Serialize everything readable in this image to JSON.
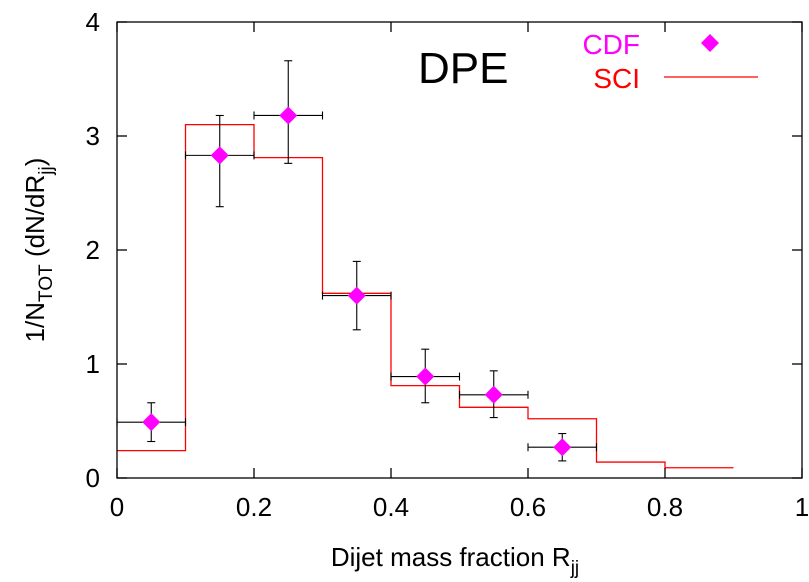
{
  "chart_data": {
    "type": "scatter",
    "xlabel": {
      "main": "Dijet mass fraction R",
      "sub": "jj"
    },
    "ylabel": {
      "prefix": "1/N",
      "sub1": "TOT",
      "mid": " (dN/dR",
      "sub2": "jj",
      "suffix": ")"
    },
    "xlim": [
      0,
      1
    ],
    "ylim": [
      0,
      4
    ],
    "xticks": [
      0,
      0.2,
      0.4,
      0.6,
      0.8,
      1
    ],
    "xtick_labels": [
      "0",
      "0.2",
      "0.4",
      "0.6",
      "0.8",
      "1"
    ],
    "yticks": [
      0,
      1,
      2,
      3,
      4
    ],
    "ytick_labels": [
      "0",
      "1",
      "2",
      "3",
      "4"
    ],
    "grid": false,
    "legend_position": "top-right",
    "annotation": "DPE",
    "series": [
      {
        "name": "CDF",
        "kind": "points-with-errors",
        "color": "#ff00ff",
        "marker": "diamond",
        "points": [
          {
            "x": 0.05,
            "y": 0.49,
            "xerr": 0.05,
            "ylo": 0.32,
            "yhi": 0.66
          },
          {
            "x": 0.15,
            "y": 2.83,
            "xerr": 0.05,
            "ylo": 2.38,
            "yhi": 3.18
          },
          {
            "x": 0.25,
            "y": 3.18,
            "xerr": 0.05,
            "ylo": 2.76,
            "yhi": 3.66
          },
          {
            "x": 0.35,
            "y": 1.6,
            "xerr": 0.05,
            "ylo": 1.3,
            "yhi": 1.9
          },
          {
            "x": 0.45,
            "y": 0.89,
            "xerr": 0.05,
            "ylo": 0.66,
            "yhi": 1.13
          },
          {
            "x": 0.55,
            "y": 0.73,
            "xerr": 0.05,
            "ylo": 0.53,
            "yhi": 0.94
          },
          {
            "x": 0.65,
            "y": 0.27,
            "xerr": 0.05,
            "ylo": 0.15,
            "yhi": 0.39
          }
        ]
      },
      {
        "name": "SCI",
        "kind": "histogram-step",
        "color": "#ff0000",
        "bin_edges": [
          0,
          0.1,
          0.2,
          0.3,
          0.4,
          0.5,
          0.6,
          0.7,
          0.8,
          0.9
        ],
        "values": [
          0.24,
          3.1,
          2.81,
          1.62,
          0.81,
          0.62,
          0.52,
          0.14,
          0.09
        ]
      }
    ]
  }
}
